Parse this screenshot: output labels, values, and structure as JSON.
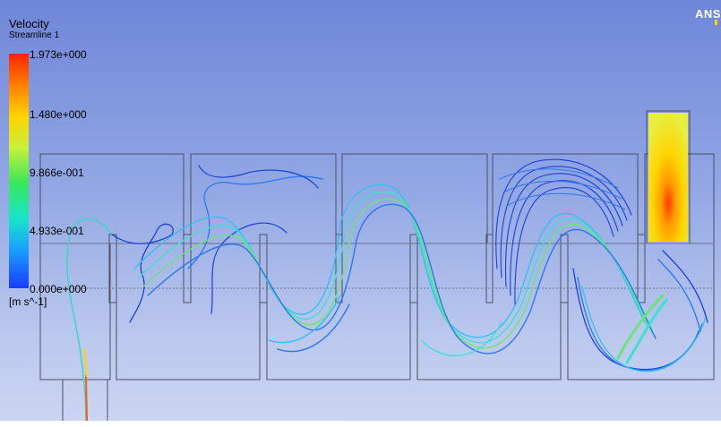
{
  "legend": {
    "variable": "Velocity",
    "object": "Streamline 1",
    "unit": "[m s^-1]",
    "ticks": [
      "1.973e+000",
      "1.480e+000",
      "9.866e-001",
      "4.933e-001",
      "0.000e+000"
    ],
    "range": [
      0,
      1.973
    ],
    "colormap": [
      "#1a3cff",
      "#1aa2ff",
      "#17e6c8",
      "#3ae65a",
      "#c8f03a",
      "#ffd400",
      "#ff8a00",
      "#ff2200"
    ]
  },
  "logo": "ANS",
  "scene": {
    "chambers": 5,
    "streamline_colors": [
      "#1b3fd8",
      "#2a78ee",
      "#34c0f0",
      "#3fe0cf",
      "#6be47a",
      "#ffd400",
      "#ff5a10"
    ]
  }
}
